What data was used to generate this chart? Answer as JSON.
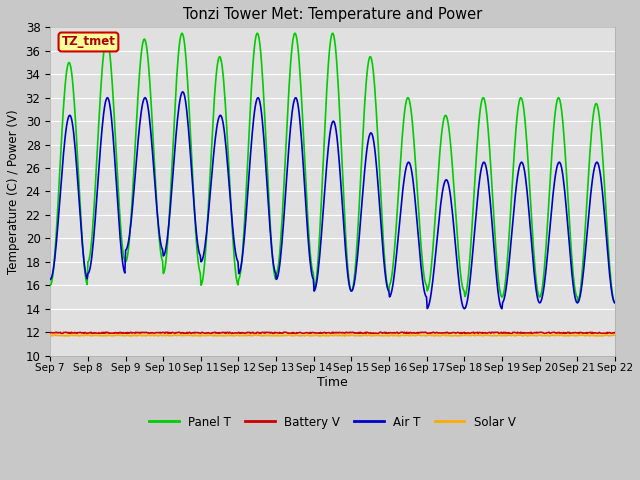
{
  "title": "Tonzi Tower Met: Temperature and Power",
  "xlabel": "Time",
  "ylabel": "Temperature (C) / Power (V)",
  "ylim": [
    10,
    38
  ],
  "yticks": [
    10,
    12,
    14,
    16,
    18,
    20,
    22,
    24,
    26,
    28,
    30,
    32,
    34,
    36,
    38
  ],
  "fig_bg_color": "#c8c8c8",
  "plot_bg_color": "#e0e0e0",
  "annotation_text": "TZ_tmet",
  "annotation_bg": "#ffff99",
  "annotation_border": "#cc0000",
  "annotation_text_color": "#aa0000",
  "legend_labels": [
    "Panel T",
    "Battery V",
    "Air T",
    "Solar V"
  ],
  "legend_colors": [
    "#00cc00",
    "#cc0000",
    "#0000cc",
    "#ffaa00"
  ],
  "panel_t_peaks": [
    35.0,
    37.0,
    37.0,
    37.5,
    35.5,
    37.5,
    37.5,
    37.5,
    35.5,
    32.0,
    30.5,
    32.0,
    32.0,
    32.0,
    31.5
  ],
  "panel_t_troughs": [
    16.0,
    18.0,
    18.0,
    17.0,
    16.0,
    16.5,
    17.0,
    15.5,
    15.5,
    16.0,
    15.5,
    15.0,
    15.0,
    15.0,
    14.5
  ],
  "air_t_peaks": [
    30.5,
    32.0,
    32.0,
    32.5,
    30.5,
    32.0,
    32.0,
    30.0,
    29.0,
    26.5,
    25.0,
    26.5,
    26.5,
    26.5,
    26.5
  ],
  "air_t_troughs": [
    16.5,
    17.0,
    19.0,
    18.5,
    18.0,
    17.0,
    16.5,
    15.5,
    15.5,
    15.0,
    14.0,
    14.0,
    14.5,
    14.5,
    14.5
  ],
  "battery_v": 11.95,
  "solar_v": 11.72,
  "x_tick_labels": [
    "Sep 7",
    "Sep 8",
    "Sep 9",
    "Sep 10",
    "Sep 11",
    "Sep 12",
    "Sep 13",
    "Sep 14",
    "Sep 15",
    "Sep 16",
    "Sep 17",
    "Sep 18",
    "Sep 19",
    "Sep 20",
    "Sep 21",
    "Sep 22"
  ],
  "panel_color": "#00cc00",
  "air_color": "#0000cc",
  "battery_color": "#cc0000",
  "solar_color": "#ffaa00",
  "grid_color": "#ffffff",
  "line_width": 1.2
}
